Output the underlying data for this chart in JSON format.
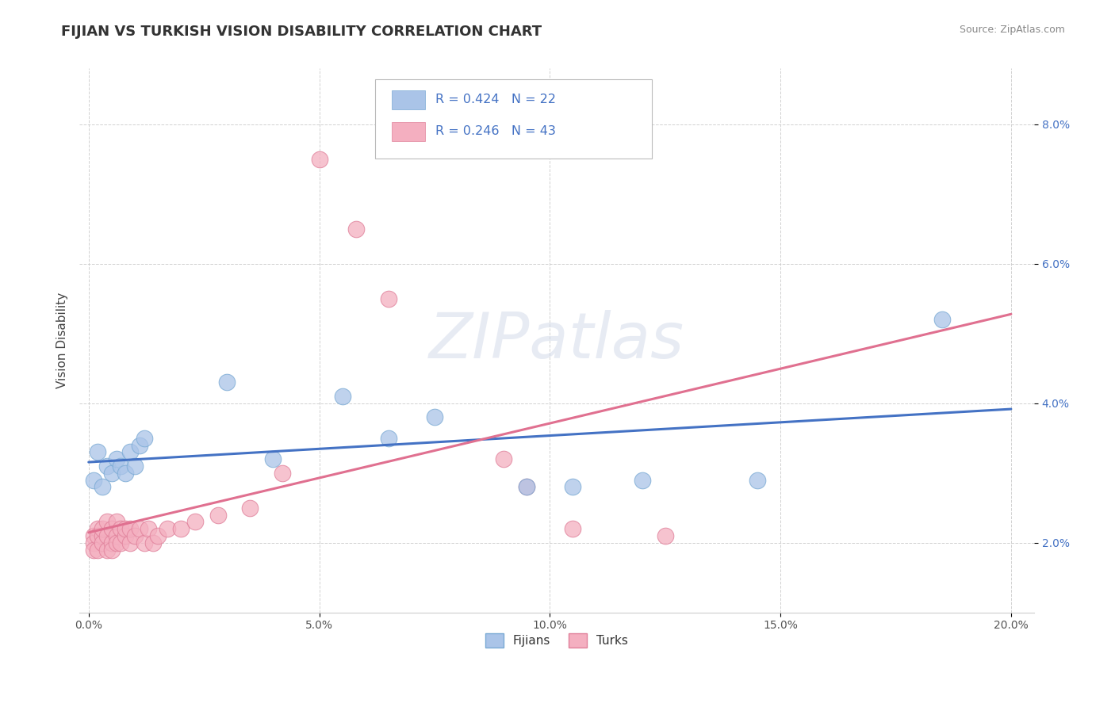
{
  "title": "FIJIAN VS TURKISH VISION DISABILITY CORRELATION CHART",
  "source": "Source: ZipAtlas.com",
  "ylabel": "Vision Disability",
  "xlim": [
    -0.002,
    0.205
  ],
  "ylim": [
    0.01,
    0.088
  ],
  "yticks": [
    0.02,
    0.04,
    0.06,
    0.08
  ],
  "ytick_labels": [
    "2.0%",
    "4.0%",
    "6.0%",
    "8.0%"
  ],
  "xticks": [
    0.0,
    0.05,
    0.1,
    0.15,
    0.2
  ],
  "xtick_labels": [
    "0.0%",
    "5.0%",
    "10.0%",
    "15.0%",
    "20.0%"
  ],
  "fijian_color": "#aac4e8",
  "fijian_edge": "#7aaad4",
  "turkish_color": "#f4afc0",
  "turkish_edge": "#e0809a",
  "fijian_line_color": "#4472c4",
  "turkish_line_color": "#e07090",
  "fijian_R": 0.424,
  "fijian_N": 22,
  "turkish_R": 0.246,
  "turkish_N": 43,
  "fijian_x": [
    0.001,
    0.002,
    0.003,
    0.004,
    0.005,
    0.006,
    0.007,
    0.008,
    0.009,
    0.01,
    0.011,
    0.012,
    0.03,
    0.04,
    0.055,
    0.065,
    0.075,
    0.095,
    0.105,
    0.12,
    0.145,
    0.185
  ],
  "fijian_y": [
    0.029,
    0.033,
    0.028,
    0.031,
    0.03,
    0.032,
    0.031,
    0.03,
    0.033,
    0.031,
    0.034,
    0.035,
    0.043,
    0.032,
    0.041,
    0.035,
    0.038,
    0.028,
    0.028,
    0.029,
    0.029,
    0.052
  ],
  "turkish_x": [
    0.001,
    0.001,
    0.001,
    0.002,
    0.002,
    0.002,
    0.003,
    0.003,
    0.003,
    0.004,
    0.004,
    0.004,
    0.005,
    0.005,
    0.005,
    0.006,
    0.006,
    0.006,
    0.007,
    0.007,
    0.008,
    0.008,
    0.009,
    0.009,
    0.01,
    0.011,
    0.012,
    0.013,
    0.014,
    0.015,
    0.017,
    0.02,
    0.023,
    0.028,
    0.035,
    0.042,
    0.05,
    0.058,
    0.065,
    0.09,
    0.095,
    0.105,
    0.125
  ],
  "turkish_y": [
    0.021,
    0.02,
    0.019,
    0.022,
    0.021,
    0.019,
    0.021,
    0.02,
    0.022,
    0.021,
    0.019,
    0.023,
    0.02,
    0.022,
    0.019,
    0.021,
    0.02,
    0.023,
    0.022,
    0.02,
    0.021,
    0.022,
    0.02,
    0.022,
    0.021,
    0.022,
    0.02,
    0.022,
    0.02,
    0.021,
    0.022,
    0.022,
    0.023,
    0.024,
    0.025,
    0.03,
    0.075,
    0.065,
    0.055,
    0.032,
    0.028,
    0.022,
    0.021
  ],
  "background_color": "#ffffff",
  "grid_color": "#cccccc",
  "title_fontsize": 13,
  "tick_fontsize": 10,
  "axis_label_fontsize": 11
}
